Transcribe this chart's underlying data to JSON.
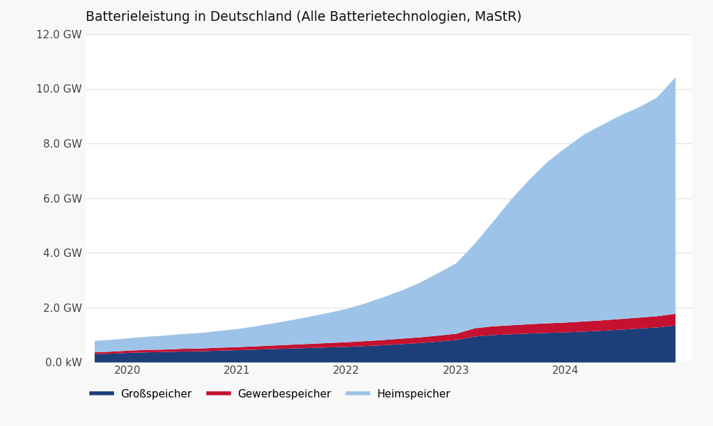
{
  "title": "Batterieleistung in Deutschland (Alle Batterietechnologien, MaStR)",
  "title_fontsize": 13.5,
  "ylim": [
    0,
    12.0
  ],
  "yticks": [
    0.0,
    2.0,
    4.0,
    6.0,
    8.0,
    10.0,
    12.0
  ],
  "ytick_labels": [
    "0.0 kW",
    "2.0 GW",
    "4.0 GW",
    "6.0 GW",
    "8.0 GW",
    "10.0 GW",
    "12.0 GW"
  ],
  "background_color": "#f8f8f8",
  "plot_bg_color": "#ffffff",
  "grid_color": "#e0e0e0",
  "colors": {
    "grossspeicher": "#1c3f7a",
    "gewerbespeicher": "#c41230",
    "heimspeicher": "#9dc4e8"
  },
  "legend_labels": [
    "Großspeicher",
    "Gewerbespeicher",
    "Heimspeicher"
  ],
  "x": [
    2019.7,
    2019.83,
    2019.92,
    2020.0,
    2020.17,
    2020.33,
    2020.5,
    2020.67,
    2020.83,
    2021.0,
    2021.17,
    2021.33,
    2021.5,
    2021.67,
    2021.83,
    2022.0,
    2022.17,
    2022.33,
    2022.5,
    2022.67,
    2022.83,
    2023.0,
    2023.17,
    2023.33,
    2023.5,
    2023.67,
    2023.83,
    2024.0,
    2024.17,
    2024.33,
    2024.5,
    2024.67,
    2024.83,
    2025.0
  ],
  "grossspeicher": [
    0.3,
    0.32,
    0.33,
    0.35,
    0.37,
    0.38,
    0.4,
    0.41,
    0.43,
    0.45,
    0.47,
    0.49,
    0.51,
    0.53,
    0.55,
    0.57,
    0.6,
    0.63,
    0.67,
    0.71,
    0.76,
    0.82,
    0.95,
    1.0,
    1.03,
    1.06,
    1.08,
    1.1,
    1.13,
    1.16,
    1.2,
    1.24,
    1.28,
    1.35
  ],
  "gewerbespeicher": [
    0.07,
    0.07,
    0.08,
    0.08,
    0.09,
    0.09,
    0.1,
    0.1,
    0.11,
    0.11,
    0.12,
    0.13,
    0.14,
    0.15,
    0.16,
    0.17,
    0.18,
    0.19,
    0.2,
    0.21,
    0.22,
    0.23,
    0.3,
    0.32,
    0.33,
    0.34,
    0.35,
    0.36,
    0.37,
    0.38,
    0.39,
    0.4,
    0.41,
    0.43
  ],
  "heimspeicher": [
    0.42,
    0.43,
    0.44,
    0.45,
    0.48,
    0.51,
    0.54,
    0.57,
    0.61,
    0.66,
    0.73,
    0.81,
    0.9,
    1.0,
    1.1,
    1.22,
    1.38,
    1.56,
    1.76,
    2.0,
    2.28,
    2.58,
    3.1,
    3.8,
    4.6,
    5.3,
    5.9,
    6.4,
    6.85,
    7.15,
    7.45,
    7.7,
    8.0,
    8.65
  ],
  "xlim": [
    2019.62,
    2025.15
  ],
  "xtick_positions": [
    2020,
    2021,
    2022,
    2023,
    2024
  ],
  "xtick_labels": [
    "2020",
    "2021",
    "2022",
    "2023",
    "2024"
  ]
}
